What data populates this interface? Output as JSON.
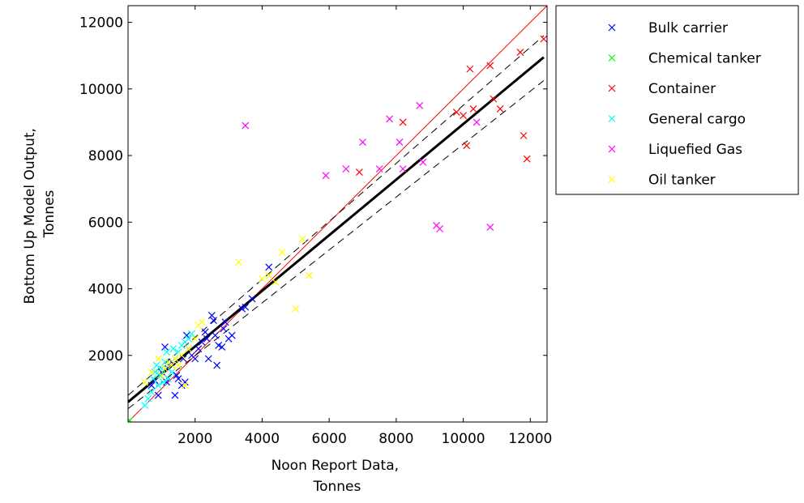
{
  "chart_data": {
    "type": "scatter",
    "title": "",
    "xlabel": [
      "Noon Report Data,",
      "Tonnes"
    ],
    "ylabel": [
      "Bottom Up Model Output,",
      "Tonnes"
    ],
    "xlim": [
      0,
      12500
    ],
    "ylim": [
      0,
      12500
    ],
    "xticks": [
      2000,
      4000,
      6000,
      8000,
      10000,
      12000
    ],
    "yticks": [
      2000,
      4000,
      6000,
      8000,
      10000,
      12000
    ],
    "grid": false,
    "legend_position": "outside-top-right",
    "series": [
      {
        "name": "Bulk carrier",
        "color": "#0000ff",
        "marker": "x",
        "points": [
          [
            700,
            1100
          ],
          [
            800,
            1250
          ],
          [
            900,
            800
          ],
          [
            1000,
            1500
          ],
          [
            1100,
            2250
          ],
          [
            1150,
            1200
          ],
          [
            1200,
            1600
          ],
          [
            1300,
            1800
          ],
          [
            1400,
            800
          ],
          [
            1450,
            1400
          ],
          [
            1500,
            1300
          ],
          [
            1600,
            1100
          ],
          [
            1650,
            1900
          ],
          [
            1700,
            1200
          ],
          [
            1750,
            2600
          ],
          [
            1800,
            2200
          ],
          [
            1900,
            2000
          ],
          [
            2000,
            1900
          ],
          [
            2100,
            2200
          ],
          [
            2200,
            2400
          ],
          [
            2300,
            2700
          ],
          [
            2350,
            2500
          ],
          [
            2400,
            1900
          ],
          [
            2500,
            3200
          ],
          [
            2550,
            3050
          ],
          [
            2600,
            2600
          ],
          [
            2650,
            1700
          ],
          [
            2700,
            2300
          ],
          [
            2800,
            2250
          ],
          [
            2850,
            2800
          ],
          [
            2900,
            3000
          ],
          [
            3000,
            2500
          ],
          [
            3100,
            2600
          ],
          [
            3400,
            3400
          ],
          [
            3500,
            3450
          ],
          [
            3700,
            3700
          ],
          [
            4200,
            4650
          ]
        ]
      },
      {
        "name": "Chemical tanker",
        "color": "#00ff00",
        "marker": "x",
        "points": [
          [
            50,
            50
          ]
        ]
      },
      {
        "name": "Container",
        "color": "#ff0000",
        "marker": "x",
        "points": [
          [
            6900,
            7500
          ],
          [
            8200,
            9000
          ],
          [
            9800,
            9300
          ],
          [
            10000,
            9200
          ],
          [
            10100,
            8300
          ],
          [
            10200,
            10600
          ],
          [
            10300,
            9400
          ],
          [
            10800,
            10700
          ],
          [
            10900,
            9700
          ],
          [
            11100,
            9400
          ],
          [
            11700,
            11100
          ],
          [
            11800,
            8600
          ],
          [
            11900,
            7900
          ],
          [
            12400,
            11500
          ]
        ]
      },
      {
        "name": "General cargo",
        "color": "#00ffff",
        "marker": "x",
        "points": [
          [
            500,
            500
          ],
          [
            600,
            700
          ],
          [
            700,
            900
          ],
          [
            750,
            1300
          ],
          [
            800,
            1500
          ],
          [
            850,
            1700
          ],
          [
            900,
            1100
          ],
          [
            950,
            1400
          ],
          [
            1000,
            1600
          ],
          [
            1050,
            1200
          ],
          [
            1100,
            1800
          ],
          [
            1150,
            2100
          ],
          [
            1200,
            1300
          ],
          [
            1300,
            1500
          ],
          [
            1350,
            2200
          ],
          [
            1400,
            1900
          ],
          [
            1500,
            2100
          ],
          [
            1600,
            2300
          ],
          [
            1700,
            2400
          ],
          [
            1800,
            2500
          ],
          [
            1900,
            2650
          ]
        ]
      },
      {
        "name": "Liquefied Gas",
        "color": "#ff00ff",
        "marker": "x",
        "points": [
          [
            3500,
            8900
          ],
          [
            5900,
            7400
          ],
          [
            6500,
            7600
          ],
          [
            7000,
            8400
          ],
          [
            7500,
            7600
          ],
          [
            7800,
            9100
          ],
          [
            8100,
            8400
          ],
          [
            8200,
            7600
          ],
          [
            8700,
            9500
          ],
          [
            8800,
            7800
          ],
          [
            9200,
            5900
          ],
          [
            9300,
            5800
          ],
          [
            10400,
            9000
          ],
          [
            10800,
            5850
          ]
        ]
      },
      {
        "name": "Oil tanker",
        "color": "#ffff00",
        "marker": "x",
        "points": [
          [
            500,
            1200
          ],
          [
            700,
            1500
          ],
          [
            900,
            1900
          ],
          [
            1000,
            1400
          ],
          [
            1100,
            1600
          ],
          [
            1200,
            1800
          ],
          [
            1300,
            1700
          ],
          [
            1400,
            1900
          ],
          [
            1500,
            1700
          ],
          [
            1600,
            2000
          ],
          [
            1700,
            1100
          ],
          [
            1800,
            2200
          ],
          [
            2000,
            2500
          ],
          [
            2100,
            2900
          ],
          [
            2200,
            3000
          ],
          [
            3300,
            4800
          ],
          [
            4000,
            4300
          ],
          [
            4200,
            4400
          ],
          [
            4400,
            4200
          ],
          [
            4600,
            5100
          ],
          [
            5000,
            3400
          ],
          [
            5200,
            5500
          ],
          [
            5400,
            4400
          ]
        ]
      }
    ],
    "lines": [
      {
        "name": "y = x reference",
        "color": "#ff0000",
        "style": "solid",
        "width": 1,
        "points": [
          [
            0,
            0
          ],
          [
            12500,
            12500
          ]
        ]
      },
      {
        "name": "fit",
        "color": "#000000",
        "style": "solid",
        "width": 3,
        "points": [
          [
            0,
            600
          ],
          [
            12400,
            10950
          ]
        ]
      },
      {
        "name": "fit confidence upper",
        "color": "#000000",
        "style": "dashed",
        "width": 1,
        "points": [
          [
            0,
            800
          ],
          [
            12400,
            11600
          ]
        ]
      },
      {
        "name": "fit confidence lower",
        "color": "#000000",
        "style": "dashed",
        "width": 1,
        "points": [
          [
            0,
            400
          ],
          [
            12400,
            10250
          ]
        ]
      },
      {
        "name": "fit prediction",
        "color": "#000000",
        "style": "dashdot",
        "width": 1,
        "points": [
          [
            0,
            600
          ],
          [
            12400,
            10950
          ]
        ]
      }
    ]
  }
}
